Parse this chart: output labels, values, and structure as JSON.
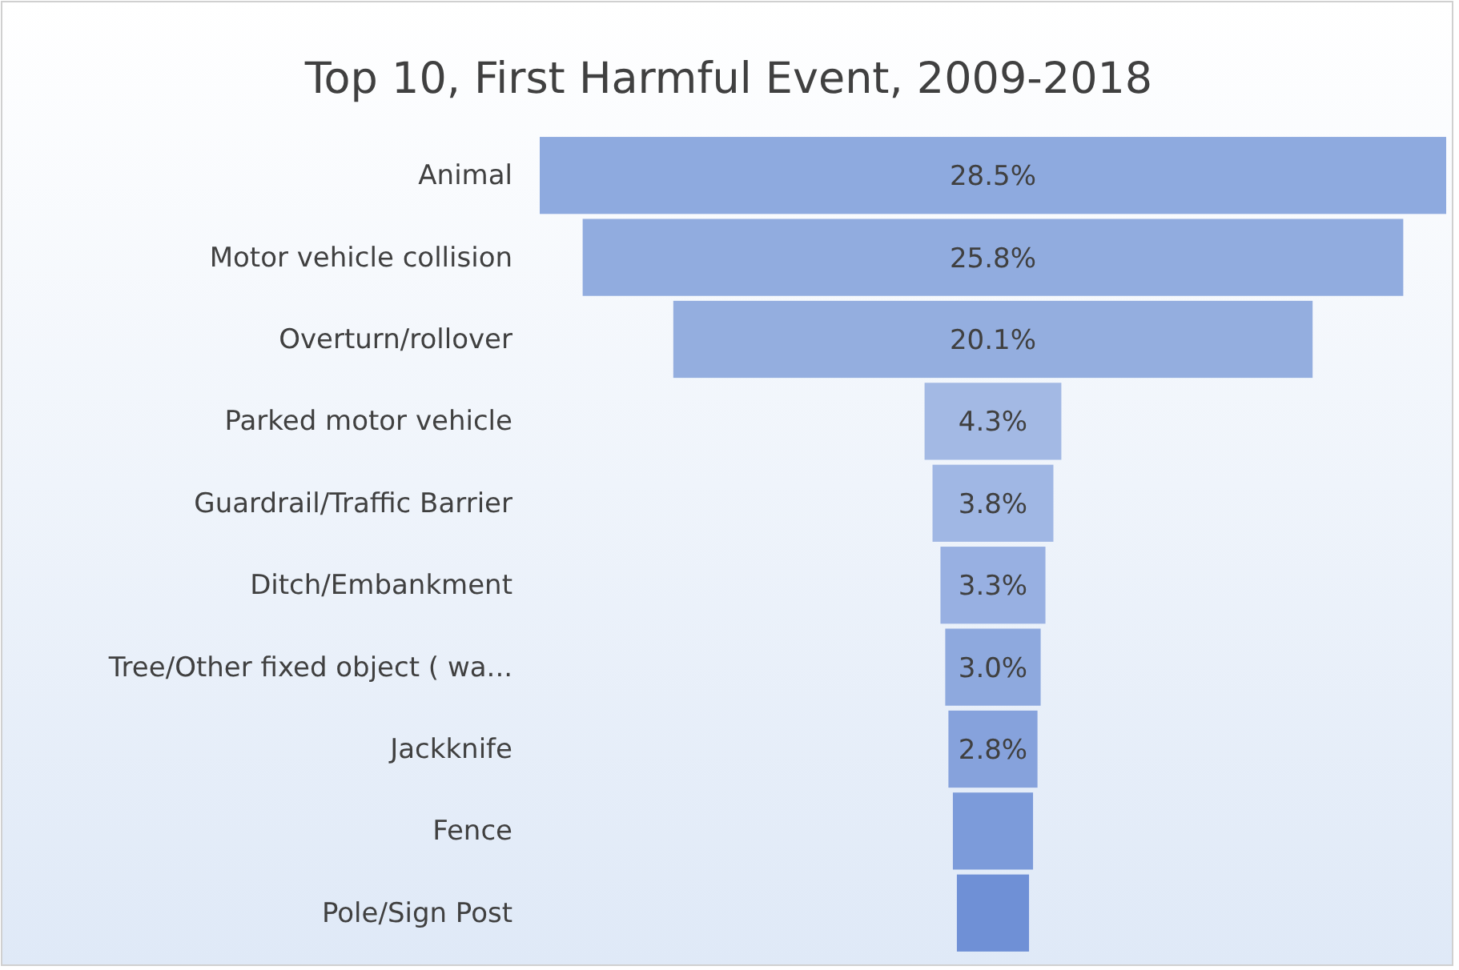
{
  "chart_data": {
    "type": "other",
    "title": "Top 10, First Harmful Event, 2009-2018",
    "categories": [
      "Animal",
      "Motor vehicle collision",
      "Overturn/rollover",
      "Parked motor vehicle",
      "Guardrail/Traffic Barrier",
      "Ditch/Embankment",
      "Tree/Other fixed object ( wa...",
      "Jackknife",
      "Fence",
      "Pole/Sign Post"
    ],
    "values": [
      28.5,
      25.8,
      20.1,
      4.3,
      3.8,
      3.3,
      3.0,
      2.8,
      null,
      null
    ],
    "value_labels": [
      "28.5%",
      "25.8%",
      "20.1%",
      "4.3%",
      "3.8%",
      "3.3%",
      "3.0%",
      "2.8%",
      null,
      null
    ],
    "colors": [
      "#8eaadf",
      "#91acdf",
      "#94aedf",
      "#a3b9e4",
      "#a0b7e4",
      "#98b0e2",
      "#8ea9de",
      "#86a2dc",
      "#7c9bda",
      "#6f90d6"
    ]
  }
}
